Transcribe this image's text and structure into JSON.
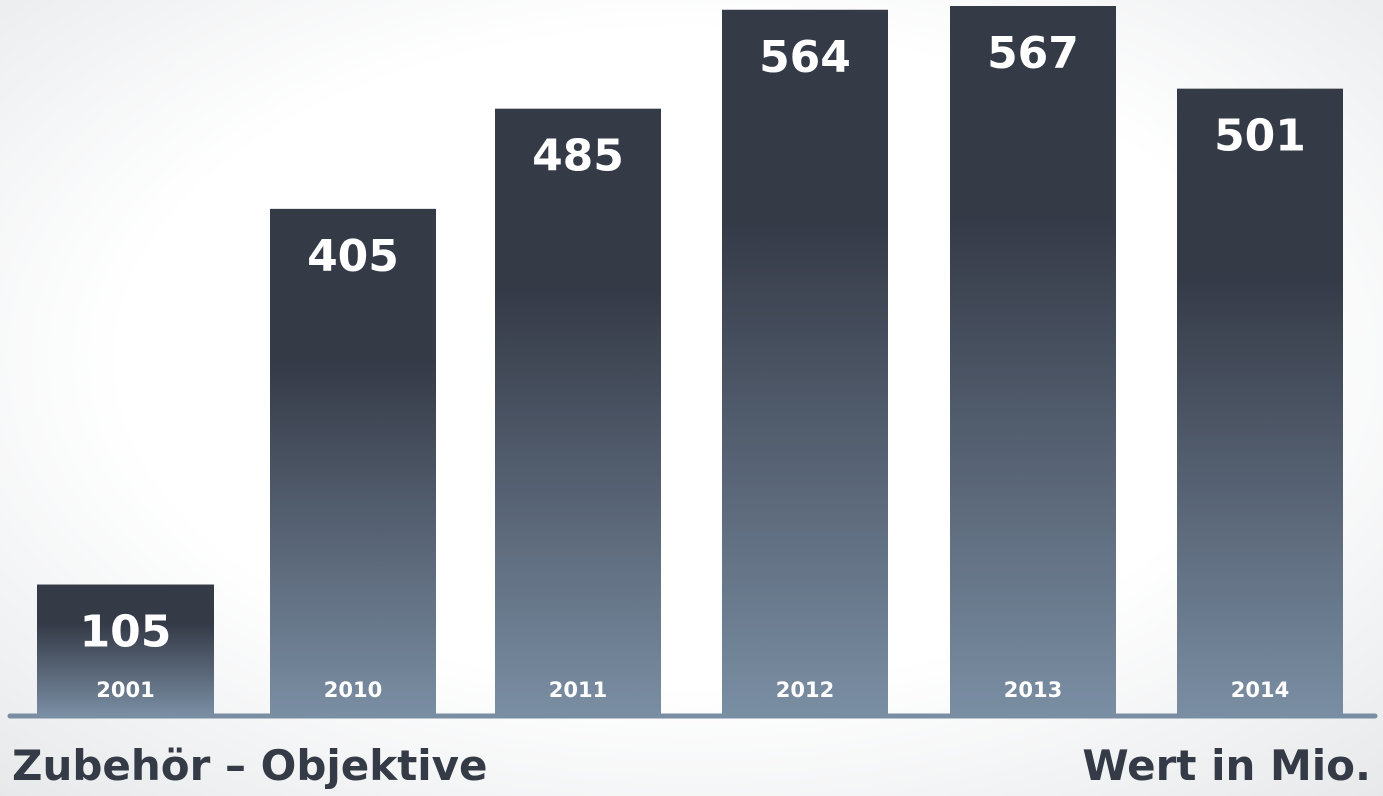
{
  "chart_data": {
    "type": "bar",
    "title": "Zubehör – Objektive",
    "unit_label": "Wert in Mio.",
    "categories": [
      "2001",
      "2010",
      "2011",
      "2012",
      "2013",
      "2014"
    ],
    "values": [
      105,
      405,
      485,
      564,
      567,
      501
    ],
    "color_top": "#353a47",
    "color_bottom": "#7a8ea3"
  }
}
